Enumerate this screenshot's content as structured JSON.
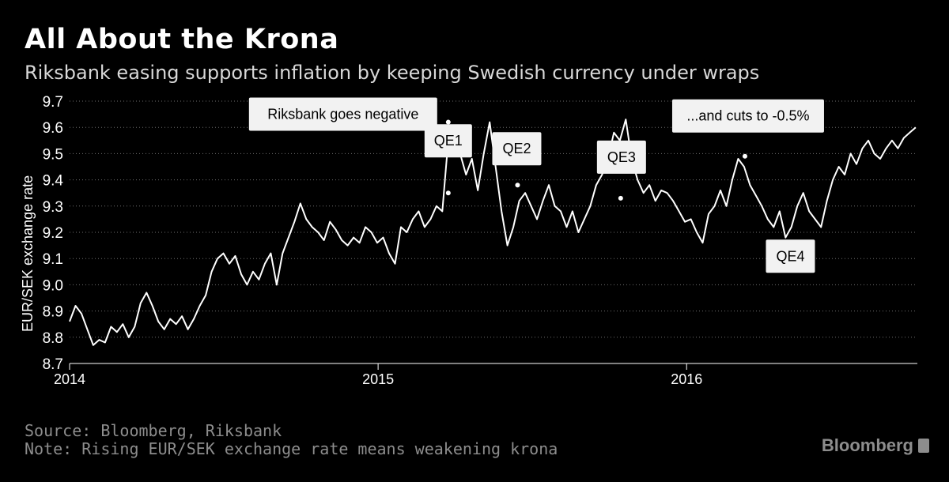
{
  "header": {
    "title": "All About the Krona",
    "subtitle": "Riksbank easing supports inflation by keeping Swedish currency under wraps"
  },
  "footer": {
    "source": "Source: Bloomberg, Riksbank",
    "note": "Note: Rising EUR/SEK exchange rate means weakening krona"
  },
  "brand": {
    "name": "Bloomberg"
  },
  "colors": {
    "background": "#000000",
    "line": "#ffffff",
    "grid": "#6e6e6e",
    "callout_bg": "#f2f2f2",
    "callout_text": "#000000"
  },
  "chart_data": {
    "type": "line",
    "title": "All About the Krona",
    "ylabel": "EUR/SEK exchange rate",
    "xlabel": "",
    "ylim": [
      8.7,
      9.7
    ],
    "xlim": [
      "2014-01-01",
      "2016-09-30"
    ],
    "y_ticks": [
      "8.7",
      "8.8",
      "8.9",
      "9.0",
      "9.1",
      "9.2",
      "9.3",
      "9.4",
      "9.5",
      "9.6",
      "9.7"
    ],
    "x_ticks": [
      {
        "date": "2014-01-01",
        "label": "2014"
      },
      {
        "date": "2015-01-01",
        "label": "2015"
      },
      {
        "date": "2016-01-01",
        "label": "2016"
      }
    ],
    "grid": "horizontal dotted",
    "series": [
      {
        "points": [
          [
            "2014-01-01",
            8.86
          ],
          [
            "2014-01-08",
            8.92
          ],
          [
            "2014-01-15",
            8.89
          ],
          [
            "2014-01-22",
            8.83
          ],
          [
            "2014-01-29",
            8.77
          ],
          [
            "2014-02-05",
            8.79
          ],
          [
            "2014-02-12",
            8.78
          ],
          [
            "2014-02-19",
            8.84
          ],
          [
            "2014-02-26",
            8.82
          ],
          [
            "2014-03-05",
            8.85
          ],
          [
            "2014-03-12",
            8.8
          ],
          [
            "2014-03-19",
            8.84
          ],
          [
            "2014-03-26",
            8.93
          ],
          [
            "2014-04-02",
            8.97
          ],
          [
            "2014-04-09",
            8.92
          ],
          [
            "2014-04-16",
            8.86
          ],
          [
            "2014-04-23",
            8.83
          ],
          [
            "2014-04-30",
            8.87
          ],
          [
            "2014-05-07",
            8.85
          ],
          [
            "2014-05-14",
            8.88
          ],
          [
            "2014-05-21",
            8.83
          ],
          [
            "2014-05-28",
            8.87
          ],
          [
            "2014-06-04",
            8.92
          ],
          [
            "2014-06-11",
            8.96
          ],
          [
            "2014-06-18",
            9.05
          ],
          [
            "2014-06-25",
            9.1
          ],
          [
            "2014-07-02",
            9.12
          ],
          [
            "2014-07-09",
            9.08
          ],
          [
            "2014-07-16",
            9.11
          ],
          [
            "2014-07-23",
            9.04
          ],
          [
            "2014-07-30",
            9.0
          ],
          [
            "2014-08-06",
            9.05
          ],
          [
            "2014-08-13",
            9.02
          ],
          [
            "2014-08-20",
            9.08
          ],
          [
            "2014-08-27",
            9.12
          ],
          [
            "2014-09-03",
            9.0
          ],
          [
            "2014-09-10",
            9.12
          ],
          [
            "2014-09-17",
            9.18
          ],
          [
            "2014-09-24",
            9.24
          ],
          [
            "2014-10-01",
            9.31
          ],
          [
            "2014-10-08",
            9.25
          ],
          [
            "2014-10-15",
            9.22
          ],
          [
            "2014-10-22",
            9.2
          ],
          [
            "2014-10-29",
            9.17
          ],
          [
            "2014-11-05",
            9.24
          ],
          [
            "2014-11-12",
            9.21
          ],
          [
            "2014-11-19",
            9.17
          ],
          [
            "2014-11-26",
            9.15
          ],
          [
            "2014-12-03",
            9.18
          ],
          [
            "2014-12-10",
            9.16
          ],
          [
            "2014-12-17",
            9.22
          ],
          [
            "2014-12-24",
            9.2
          ],
          [
            "2014-12-31",
            9.16
          ],
          [
            "2015-01-07",
            9.18
          ],
          [
            "2015-01-14",
            9.12
          ],
          [
            "2015-01-21",
            9.08
          ],
          [
            "2015-01-28",
            9.22
          ],
          [
            "2015-02-04",
            9.2
          ],
          [
            "2015-02-11",
            9.25
          ],
          [
            "2015-02-18",
            9.28
          ],
          [
            "2015-02-25",
            9.22
          ],
          [
            "2015-03-04",
            9.25
          ],
          [
            "2015-03-11",
            9.3
          ],
          [
            "2015-03-18",
            9.28
          ],
          [
            "2015-03-25",
            9.55
          ],
          [
            "2015-04-01",
            9.58
          ],
          [
            "2015-04-08",
            9.5
          ],
          [
            "2015-04-15",
            9.42
          ],
          [
            "2015-04-22",
            9.48
          ],
          [
            "2015-04-29",
            9.36
          ],
          [
            "2015-05-06",
            9.5
          ],
          [
            "2015-05-13",
            9.62
          ],
          [
            "2015-05-20",
            9.45
          ],
          [
            "2015-05-27",
            9.28
          ],
          [
            "2015-06-03",
            9.15
          ],
          [
            "2015-06-10",
            9.22
          ],
          [
            "2015-06-17",
            9.32
          ],
          [
            "2015-06-24",
            9.35
          ],
          [
            "2015-07-01",
            9.3
          ],
          [
            "2015-07-08",
            9.25
          ],
          [
            "2015-07-15",
            9.32
          ],
          [
            "2015-07-22",
            9.38
          ],
          [
            "2015-07-29",
            9.3
          ],
          [
            "2015-08-05",
            9.28
          ],
          [
            "2015-08-12",
            9.22
          ],
          [
            "2015-08-19",
            9.28
          ],
          [
            "2015-08-26",
            9.2
          ],
          [
            "2015-09-02",
            9.25
          ],
          [
            "2015-09-09",
            9.3
          ],
          [
            "2015-09-16",
            9.38
          ],
          [
            "2015-09-23",
            9.42
          ],
          [
            "2015-09-30",
            9.48
          ],
          [
            "2015-10-07",
            9.58
          ],
          [
            "2015-10-14",
            9.55
          ],
          [
            "2015-10-21",
            9.63
          ],
          [
            "2015-10-28",
            9.48
          ],
          [
            "2015-11-04",
            9.4
          ],
          [
            "2015-11-11",
            9.35
          ],
          [
            "2015-11-18",
            9.38
          ],
          [
            "2015-11-25",
            9.32
          ],
          [
            "2015-12-02",
            9.36
          ],
          [
            "2015-12-09",
            9.35
          ],
          [
            "2015-12-16",
            9.32
          ],
          [
            "2015-12-23",
            9.28
          ],
          [
            "2015-12-30",
            9.24
          ],
          [
            "2016-01-06",
            9.25
          ],
          [
            "2016-01-13",
            9.2
          ],
          [
            "2016-01-20",
            9.16
          ],
          [
            "2016-01-27",
            9.27
          ],
          [
            "2016-02-03",
            9.3
          ],
          [
            "2016-02-10",
            9.36
          ],
          [
            "2016-02-17",
            9.3
          ],
          [
            "2016-02-24",
            9.4
          ],
          [
            "2016-03-02",
            9.48
          ],
          [
            "2016-03-09",
            9.45
          ],
          [
            "2016-03-16",
            9.38
          ],
          [
            "2016-03-23",
            9.34
          ],
          [
            "2016-03-30",
            9.3
          ],
          [
            "2016-04-06",
            9.25
          ],
          [
            "2016-04-13",
            9.22
          ],
          [
            "2016-04-20",
            9.28
          ],
          [
            "2016-04-27",
            9.18
          ],
          [
            "2016-05-04",
            9.22
          ],
          [
            "2016-05-11",
            9.3
          ],
          [
            "2016-05-18",
            9.35
          ],
          [
            "2016-05-25",
            9.28
          ],
          [
            "2016-06-01",
            9.25
          ],
          [
            "2016-06-08",
            9.22
          ],
          [
            "2016-06-15",
            9.32
          ],
          [
            "2016-06-22",
            9.4
          ],
          [
            "2016-06-29",
            9.45
          ],
          [
            "2016-07-06",
            9.42
          ],
          [
            "2016-07-13",
            9.5
          ],
          [
            "2016-07-20",
            9.46
          ],
          [
            "2016-07-27",
            9.52
          ],
          [
            "2016-08-03",
            9.55
          ],
          [
            "2016-08-10",
            9.5
          ],
          [
            "2016-08-17",
            9.48
          ],
          [
            "2016-08-24",
            9.52
          ],
          [
            "2016-08-31",
            9.55
          ],
          [
            "2016-09-07",
            9.52
          ],
          [
            "2016-09-14",
            9.56
          ],
          [
            "2016-09-21",
            9.58
          ],
          [
            "2016-09-28",
            9.6
          ]
        ]
      }
    ],
    "annotations": [
      {
        "label": "Riksbank goes negative",
        "date": "2015-03-25",
        "value": 9.62
      },
      {
        "label": "QE1",
        "date": "2015-03-25",
        "value": 9.35
      },
      {
        "label": "QE2",
        "date": "2015-06-15",
        "value": 9.38
      },
      {
        "label": "QE3",
        "date": "2015-10-15",
        "value": 9.33
      },
      {
        "label": "...and cuts to -0.5%",
        "date": "2016-03-10",
        "value": 9.49
      },
      {
        "label": "QE4",
        "date": "2016-04-30",
        "value": 9.16
      }
    ]
  }
}
